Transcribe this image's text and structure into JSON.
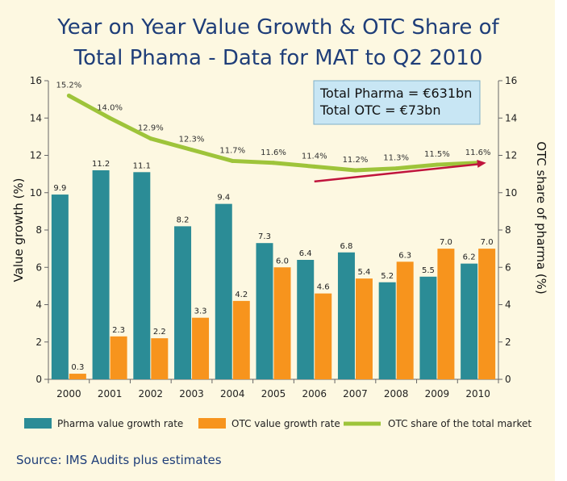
{
  "chart_data": {
    "type": "bar",
    "title_lines": [
      "Year on Year Value Growth & OTC Share of",
      "Total Phama - Data for MAT to Q2 2010"
    ],
    "categories": [
      "2000",
      "2001",
      "2002",
      "2003",
      "2004",
      "2005",
      "2006",
      "2007",
      "2008",
      "2009",
      "2010"
    ],
    "series": [
      {
        "name": "Pharma value growth rate",
        "kind": "bar",
        "axis": "left",
        "color": "#2b8c96",
        "values": [
          9.9,
          11.2,
          11.1,
          8.2,
          9.4,
          7.3,
          6.4,
          6.8,
          5.2,
          5.5,
          6.2
        ],
        "labels": [
          "9.9",
          "11.2",
          "11.1",
          "8.2",
          "9.4",
          "7.3",
          "6.4",
          "6.8",
          "5.2",
          "5.5",
          "6.2"
        ]
      },
      {
        "name": "OTC value growth rate",
        "kind": "bar",
        "axis": "left",
        "color": "#f7941d",
        "values": [
          0.3,
          2.3,
          2.2,
          3.3,
          4.2,
          6.0,
          4.6,
          5.4,
          6.3,
          7.0,
          7.0
        ],
        "labels": [
          "0.3",
          "2.3",
          "2.2",
          "3.3",
          "4.2",
          "6.0",
          "4.6",
          "5.4",
          "6.3",
          "7.0",
          "7.0"
        ]
      },
      {
        "name": "OTC share of the total market",
        "kind": "line",
        "axis": "right",
        "color": "#9ec43a",
        "values": [
          15.2,
          14.0,
          12.9,
          12.3,
          11.7,
          11.6,
          11.4,
          11.2,
          11.3,
          11.5,
          11.6
        ],
        "labels": [
          "15.2%",
          "14.0%",
          "12.9%",
          "12.3%",
          "11.7%",
          "11.6%",
          "11.4%",
          "11.2%",
          "11.3%",
          "11.5%",
          "11.6%"
        ]
      }
    ],
    "ylabel": "Value growth (%)",
    "y2label": "OTC share of pharma (%)",
    "ylim": [
      0,
      16
    ],
    "y2lim": [
      0,
      16
    ],
    "yticks": [
      "0",
      "2",
      "4",
      "6",
      "8",
      "10",
      "12",
      "14",
      "16"
    ],
    "y2ticks": [
      "0",
      "2",
      "4",
      "6",
      "8",
      "10",
      "12",
      "14",
      "16"
    ],
    "tick_values": [
      0,
      2,
      4,
      6,
      8,
      10,
      12,
      14,
      16
    ],
    "annotation_lines": [
      "Total Pharma = €631bn",
      "Total OTC = €73bn"
    ],
    "annotation_bg": "#c8e6f4",
    "arrow_color": "#c0143c",
    "arrow_span": [
      6.5,
      10.7
    ],
    "arrow_values": [
      10.6,
      11.6
    ],
    "legend_position": "bottom",
    "source": "Source: IMS Audits plus estimates",
    "title_color": "#1f3e79",
    "panel_color": "#fdf8e1"
  }
}
